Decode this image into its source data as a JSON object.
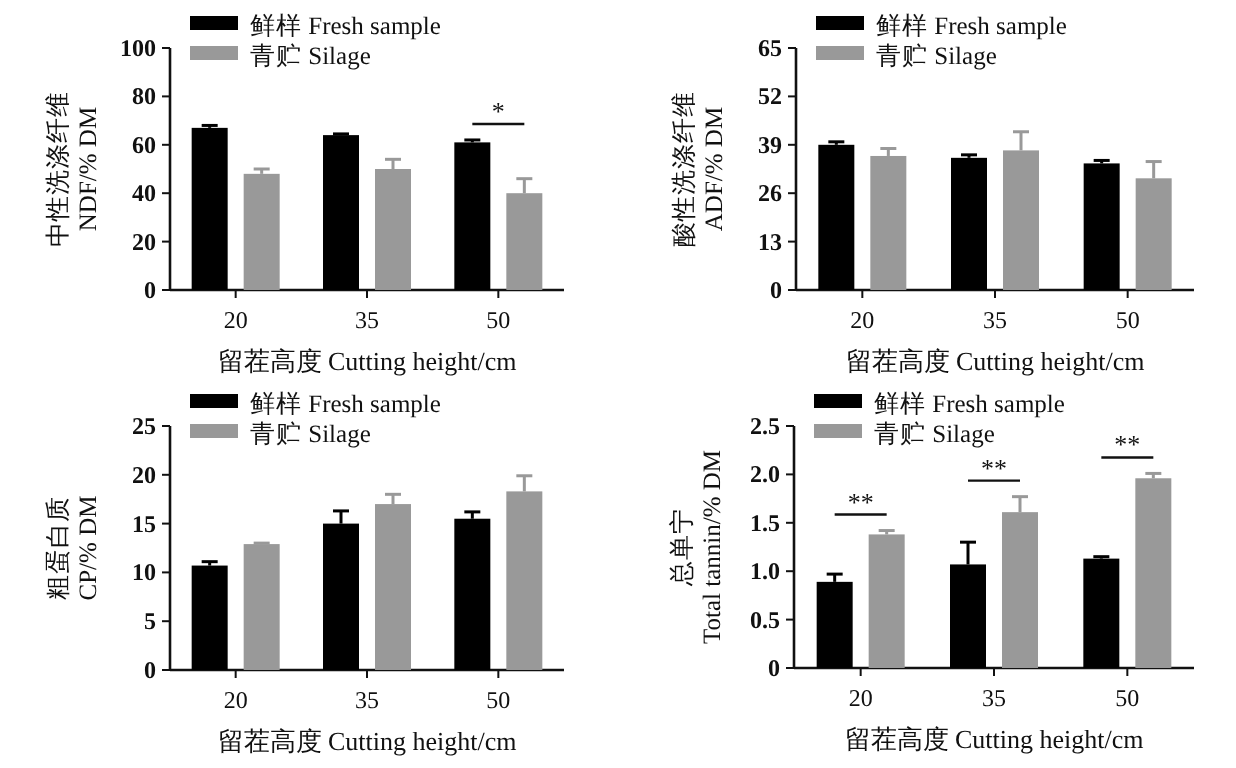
{
  "chart_data": [
    {
      "type": "bar",
      "ylabel": "中性洗涤纤维\nNDF/% DM",
      "xlabel": "留茬高度  Cutting height/cm",
      "categories": [
        "20",
        "35",
        "50"
      ],
      "ylim": [
        0,
        100
      ],
      "yticks": [
        0,
        20,
        40,
        60,
        80,
        100
      ],
      "legend": "top",
      "annotations": [
        "*"
      ],
      "series": [
        {
          "name": "鲜样  Fresh sample",
          "color": "#000000",
          "values": [
            67,
            64,
            61
          ],
          "errors": [
            [
              67,
              68
            ],
            [
              64,
              64.5
            ],
            [
              61,
              62
            ]
          ]
        },
        {
          "name": "青贮  Silage",
          "color": "#999999",
          "values": [
            48,
            50,
            40
          ],
          "errors": [
            [
              48,
              50
            ],
            [
              50,
              54
            ],
            [
              40,
              46
            ]
          ]
        }
      ]
    },
    {
      "type": "bar",
      "ylabel": "酸性洗涤纤维\nADF/% DM",
      "xlabel": "留茬高度  Cutting height/cm",
      "categories": [
        "20",
        "35",
        "50"
      ],
      "ylim": [
        0,
        65
      ],
      "yticks": [
        0,
        13,
        26,
        39,
        52,
        65
      ],
      "legend": "top",
      "series": [
        {
          "name": "鲜样  Fresh sample",
          "color": "#000000",
          "values": [
            39,
            35.5,
            34
          ],
          "errors": [
            [
              39,
              39.8
            ],
            [
              35.5,
              36.3
            ],
            [
              34,
              34.8
            ]
          ]
        },
        {
          "name": "青贮  Silage",
          "color": "#999999",
          "values": [
            36,
            37.5,
            30
          ],
          "errors": [
            [
              36,
              38
            ],
            [
              37.5,
              42.5
            ],
            [
              30,
              34.5
            ]
          ]
        }
      ]
    },
    {
      "type": "bar",
      "ylabel": "粗蛋白质\nCP/% DM",
      "xlabel": "留茬高度  Cutting height/cm",
      "categories": [
        "20",
        "35",
        "50"
      ],
      "ylim": [
        0,
        25
      ],
      "yticks": [
        0,
        5,
        10,
        15,
        20,
        25
      ],
      "legend": "top",
      "series": [
        {
          "name": "鲜样  Fresh sample",
          "color": "#000000",
          "values": [
            10.7,
            15,
            15.5
          ],
          "errors": [
            [
              10.7,
              11.1
            ],
            [
              15,
              16.3
            ],
            [
              15.5,
              16.2
            ]
          ]
        },
        {
          "name": "青贮  Silage",
          "color": "#999999",
          "values": [
            12.9,
            17,
            18.3
          ],
          "errors": [
            [
              12.9,
              13
            ],
            [
              17,
              18
            ],
            [
              18.3,
              19.9
            ]
          ]
        }
      ]
    },
    {
      "type": "bar",
      "ylabel": "总单宁\nTotal tannin/% DM",
      "xlabel": "留茬高度  Cutting height/cm",
      "categories": [
        "20",
        "35",
        "50"
      ],
      "ylim": [
        0,
        2.5
      ],
      "yticks": [
        {
          "value": 0,
          "label": "0"
        },
        {
          "value": 0.5,
          "label": "0.5"
        },
        {
          "value": 1,
          "label": "1.0"
        },
        {
          "value": 1.5,
          "label": "1.5"
        },
        {
          "value": 2,
          "label": "2.0"
        },
        {
          "value": 2.5,
          "label": "2.5"
        }
      ],
      "legend": "top",
      "annotations": [
        "**",
        "**",
        "**"
      ],
      "series": [
        {
          "name": "鲜样  Fresh sample",
          "color": "#000000",
          "values": [
            0.89,
            1.07,
            1.13
          ],
          "errors": [
            [
              0.89,
              0.97
            ],
            [
              1.07,
              1.3
            ],
            [
              1.13,
              1.15
            ]
          ]
        },
        {
          "name": "青贮  Silage",
          "color": "#999999",
          "values": [
            1.38,
            1.61,
            1.96
          ],
          "errors": [
            [
              1.38,
              1.42
            ],
            [
              1.61,
              1.77
            ],
            [
              1.96,
              2.01
            ]
          ]
        }
      ]
    }
  ]
}
